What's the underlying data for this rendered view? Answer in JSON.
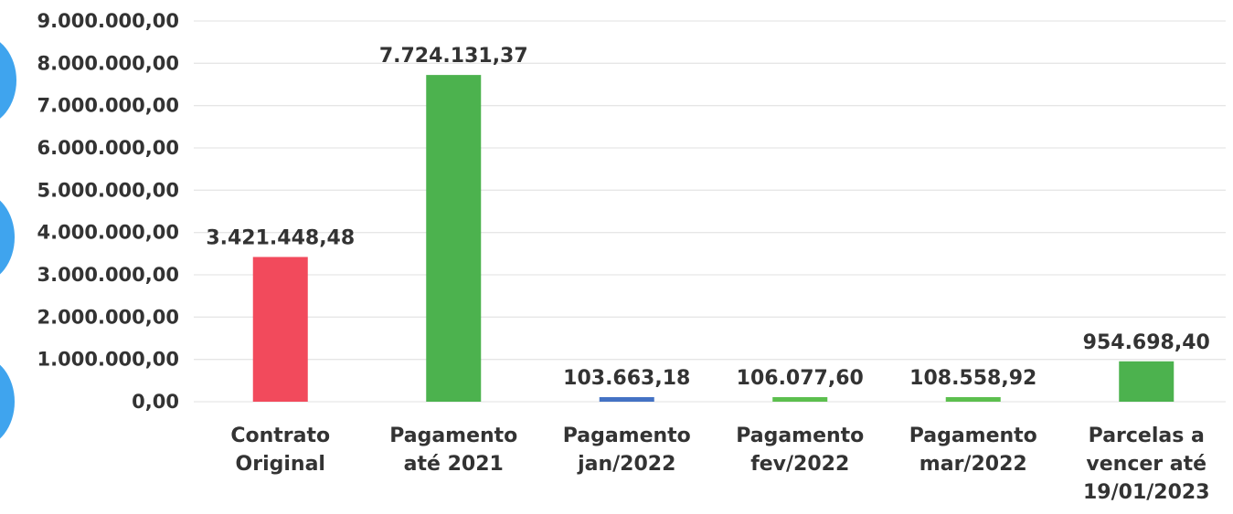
{
  "chart_data": {
    "type": "bar",
    "categories": [
      "Contrato Original",
      "Pagamento até 2021",
      "Pagamento jan/2022",
      "Pagamento fev/2022",
      "Pagamento mar/2022",
      "Parcelas a vencer até 19/01/2023"
    ],
    "category_lines": [
      [
        "Contrato",
        "Original"
      ],
      [
        "Pagamento",
        "até 2021"
      ],
      [
        "Pagamento",
        "jan/2022"
      ],
      [
        "Pagamento",
        "fev/2022"
      ],
      [
        "Pagamento",
        "mar/2022"
      ],
      [
        "Parcelas a",
        "vencer até",
        "19/01/2023"
      ]
    ],
    "values": [
      3421448.48,
      7724131.37,
      103663.18,
      106077.6,
      108558.92,
      954698.4
    ],
    "data_labels": [
      "3.421.448,48",
      "7.724.131,37",
      "103.663,18",
      "106.077,60",
      "108.558,92",
      "954.698,40"
    ],
    "bar_colors": [
      "#f24a5c",
      "#4cb24e",
      "#4472c4",
      "#5cbf4e",
      "#5cbf4e",
      "#4cb24e"
    ],
    "ylim": [
      0,
      9000000
    ],
    "yticks": [
      0,
      1000000,
      2000000,
      3000000,
      4000000,
      5000000,
      6000000,
      7000000,
      8000000,
      9000000
    ],
    "ytick_labels": [
      "0,00",
      "1.000.000,00",
      "2.000.000,00",
      "3.000.000,00",
      "4.000.000,00",
      "5.000.000,00",
      "6.000.000,00",
      "7.000.000,00",
      "8.000.000,00",
      "9.000.000,00"
    ],
    "grid": true,
    "grid_color": "#e6e6e6",
    "text_color": "#333333",
    "accent_circle_color": "#3fa4ee",
    "legend": "none",
    "title": "",
    "xlabel": "",
    "ylabel": ""
  }
}
